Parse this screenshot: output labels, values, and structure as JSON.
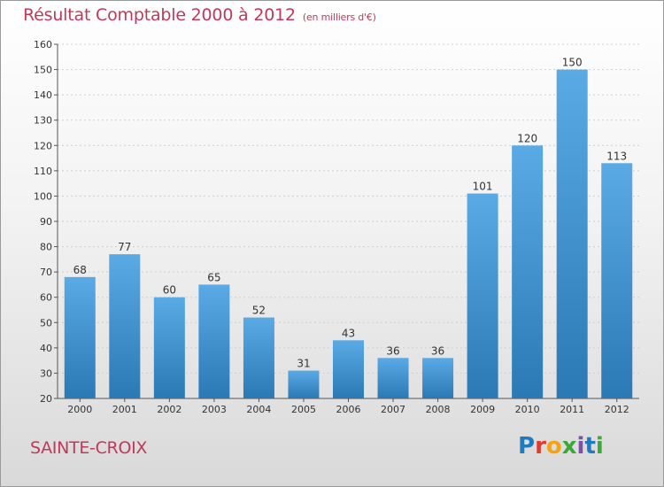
{
  "title": "Résultat Comptable 2000 à 2012",
  "subtitle": "(en milliers d'€)",
  "location": "SAINTE-CROIX",
  "logo": [
    "P",
    "r",
    "o",
    "x",
    "i",
    "t",
    "i"
  ],
  "colors": {
    "title": "#c0395a",
    "bar_light": "#5aaae6",
    "bar_dark": "#2a79b5"
  },
  "chart_data": {
    "type": "bar",
    "categories": [
      "2000",
      "2001",
      "2002",
      "2003",
      "2004",
      "2005",
      "2006",
      "2007",
      "2008",
      "2009",
      "2010",
      "2011",
      "2012"
    ],
    "values": [
      68,
      77,
      60,
      65,
      52,
      31,
      43,
      36,
      36,
      101,
      120,
      150,
      113
    ],
    "ylim": [
      20,
      160
    ],
    "yticks": [
      20,
      30,
      40,
      50,
      60,
      70,
      80,
      90,
      100,
      110,
      120,
      130,
      140,
      150,
      160
    ],
    "grid": true,
    "xlabel": "",
    "ylabel": ""
  }
}
